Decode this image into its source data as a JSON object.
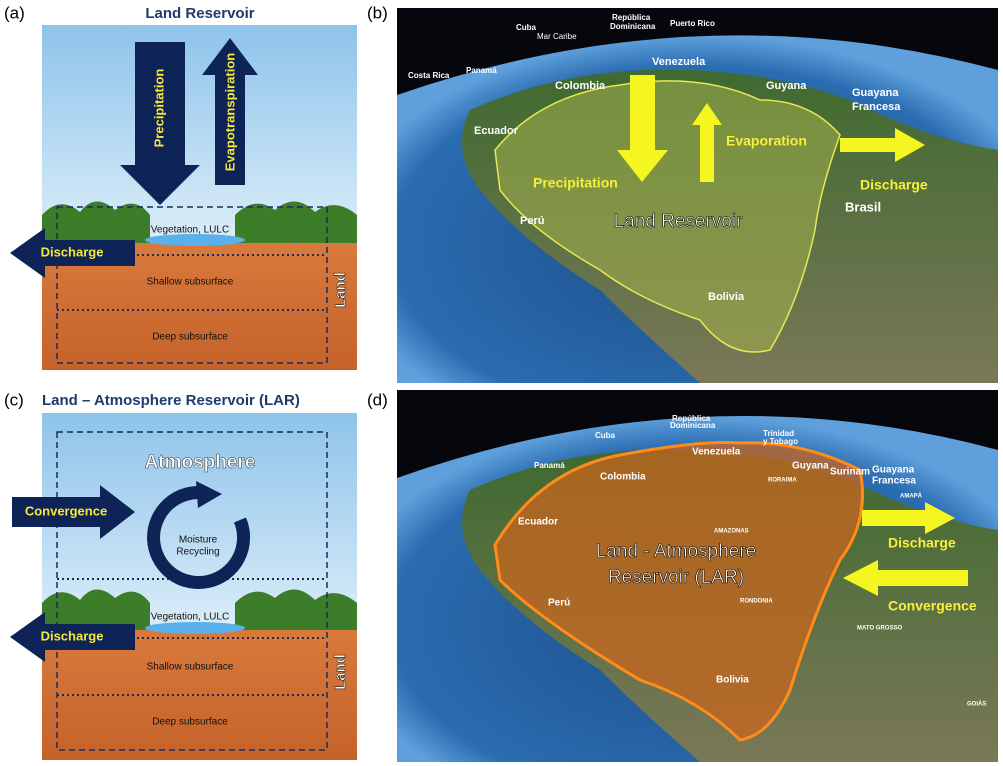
{
  "panel_a": {
    "label": "(a)",
    "title": "Land Reservoir",
    "precipitation": "Precipitation",
    "evapotranspiration": "Evapotranspiration",
    "discharge": "Discharge",
    "vegetation": "Vegetation, LULC",
    "shallow": "Shallow subsurface",
    "deep": "Deep subsurface",
    "land": "Land"
  },
  "panel_b": {
    "label": "(b)",
    "places": [
      "Cuba",
      "República",
      "Dominicana",
      "Puerto Rico",
      "Mar Caribe",
      "Costa Rica",
      "Panamá",
      "Colombia",
      "Venezuela",
      "Guyana",
      "Guayana",
      "Francesa",
      "Ecuador",
      "Perú",
      "Brasil",
      "Bolivia"
    ],
    "precipitation": "Precipitation",
    "evaporation": "Evaporation",
    "discharge": "Discharge",
    "reservoir": "Land Reservoir"
  },
  "panel_c": {
    "label": "(c)",
    "title": "Land – Atmosphere Reservoir (LAR)",
    "atmosphere": "Atmosphere",
    "convergence": "Convergence",
    "recycling": [
      "Moisture",
      "Recycling"
    ],
    "discharge": "Discharge",
    "vegetation": "Vegetation, LULC",
    "shallow": "Shallow subsurface",
    "deep": "Deep subsurface",
    "land": "Land"
  },
  "panel_d": {
    "label": "(d)",
    "places": [
      "República",
      "Dominicana",
      "Cuba",
      "Trinidad",
      "y Tobago",
      "Panamá",
      "Venezuela",
      "Guyana",
      "Surinam",
      "Guayana",
      "Francesa",
      "Colombia",
      "Ecuador",
      "Perú",
      "Bolivia",
      "RORAIMA",
      "AMAZONAS",
      "RONDONIA",
      "AMAPÁ",
      "MATO GROSSO",
      "GOIÁS"
    ],
    "reservoir": [
      "Land - Atmosphere",
      "Reservoir (LAR)"
    ],
    "discharge": "Discharge",
    "convergence": "Convergence"
  }
}
